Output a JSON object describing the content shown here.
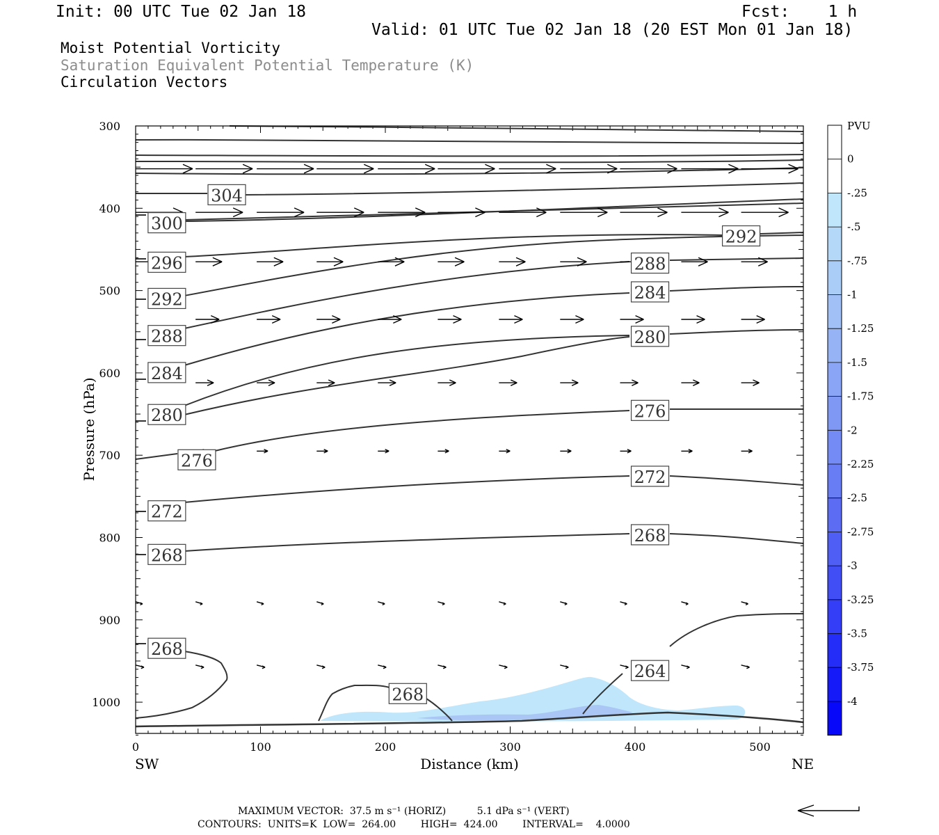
{
  "header": {
    "init": "Init: 00 UTC Tue 02 Jan 18",
    "fcst": "Fcst:    1 h",
    "valid": "Valid: 01 UTC Tue 02 Jan 18 (20 EST Mon 01 Jan 18)"
  },
  "titles": {
    "line1": "Moist Potential Vorticity",
    "line2": "Saturation Equivalent Potential Temperature (K)",
    "line3": "Circulation Vectors"
  },
  "colors": {
    "line2": "#8c8c8c",
    "pvu_shade": "#bfe6fa",
    "pvu_shade_dark": "#a9c6f5",
    "axes": "#000000",
    "contour": "#333333"
  },
  "footer": {
    "line1": "MAXIMUM VECTOR:  37.5 m s⁻¹ (HORIZ)          5.1 dPa s⁻¹ (VERT)",
    "line2": "CONTOURS:  UNITS=K  LOW=  264.00        HIGH=  424.00        INTERVAL=    4.0000"
  },
  "chart_data": {
    "type": "contour",
    "xlabel": "Distance (km)",
    "ylabel": "Pressure (hPa)",
    "x_ticks": [
      0,
      100,
      200,
      300,
      400,
      500
    ],
    "y_ticks": [
      300,
      400,
      500,
      600,
      700,
      800,
      900,
      1000
    ],
    "xlim": [
      0,
      535
    ],
    "ylim": [
      1040,
      300
    ],
    "x_end_labels": {
      "left": "SW",
      "right": "NE"
    },
    "colorbar": {
      "unit": "PVU",
      "levels": [
        "0",
        "-.25",
        "-.5",
        "-.75",
        "-1",
        "-1.25",
        "-1.5",
        "-1.75",
        "-2",
        "-2.25",
        "-2.5",
        "-2.75",
        "-3",
        "-3.25",
        "-3.5",
        "-3.75",
        "-4"
      ],
      "colors": [
        "#ffffff",
        "#ffffff",
        "#bfe6fa",
        "#b4d9f8",
        "#aacdf7",
        "#a0c0f6",
        "#95b3f5",
        "#8aa5f5",
        "#7f98f4",
        "#748af4",
        "#687cf4",
        "#5c6df4",
        "#4f5ef5",
        "#414ef5",
        "#333ef6",
        "#242df7",
        "#151bf8",
        "#0707fa"
      ]
    },
    "contour_labels": [
      {
        "label": "304",
        "x": 73,
        "p": 384
      },
      {
        "label": "300",
        "x": 25,
        "p": 418
      },
      {
        "label": "292",
        "x": 485,
        "p": 434
      },
      {
        "label": "296",
        "x": 25,
        "p": 466
      },
      {
        "label": "288",
        "x": 412,
        "p": 467
      },
      {
        "label": "292",
        "x": 25,
        "p": 510
      },
      {
        "label": "284",
        "x": 412,
        "p": 502
      },
      {
        "label": "288",
        "x": 25,
        "p": 555
      },
      {
        "label": "280",
        "x": 412,
        "p": 556
      },
      {
        "label": "284",
        "x": 25,
        "p": 600
      },
      {
        "label": "280",
        "x": 25,
        "p": 651
      },
      {
        "label": "276",
        "x": 412,
        "p": 646
      },
      {
        "label": "276",
        "x": 49,
        "p": 706
      },
      {
        "label": "272",
        "x": 412,
        "p": 726
      },
      {
        "label": "272",
        "x": 25,
        "p": 768
      },
      {
        "label": "268",
        "x": 412,
        "p": 797
      },
      {
        "label": "268",
        "x": 25,
        "p": 821
      },
      {
        "label": "268",
        "x": 25,
        "p": 935
      },
      {
        "label": "264",
        "x": 412,
        "p": 962
      },
      {
        "label": "268",
        "x": 218,
        "p": 990
      }
    ],
    "max_vector": {
      "horizontal": 37.5,
      "horizontal_unit": "m s-1",
      "vertical": 5.1,
      "vertical_unit": "dPa s-1"
    },
    "contour_stats": {
      "units": "K",
      "low": 264.0,
      "high": 424.0,
      "interval": 4.0
    }
  }
}
